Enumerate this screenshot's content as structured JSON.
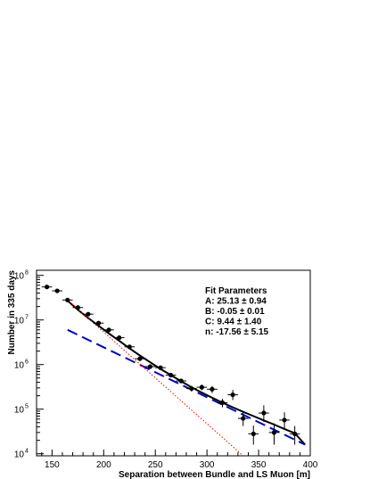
{
  "chart_data": {
    "type": "scatter",
    "title": "",
    "xlabel": "Separation between Bundle and LS Muon [m]",
    "ylabel": "Number in 335 days",
    "xlim": [
      135,
      400
    ],
    "ylim": [
      9000,
      130000000
    ],
    "yscale": "log",
    "x_ticks": [
      150,
      200,
      250,
      300,
      350,
      400
    ],
    "y_ticks": [
      {
        "value": 10000,
        "base": "10",
        "exp": "4"
      },
      {
        "value": 100000,
        "base": "10",
        "exp": "5"
      },
      {
        "value": 1000000,
        "base": "10",
        "exp": "6"
      },
      {
        "value": 10000000,
        "base": "10",
        "exp": "7"
      },
      {
        "value": 100000000,
        "base": "10",
        "exp": "8"
      }
    ],
    "grid": false,
    "legend": {
      "placement": "top-right",
      "title": "Fit Parameters",
      "lines": [
        "A: 25.13 ± 0.94",
        "B: -0.05 ± 0.01",
        "C: 9.44 ± 1.40",
        "n: -17.56 ± 5.15"
      ]
    },
    "data_points": {
      "x_error": 5,
      "x": [
        145,
        155,
        165,
        175,
        185,
        195,
        205,
        215,
        225,
        235,
        245,
        255,
        265,
        275,
        285,
        295,
        305,
        315,
        325,
        335,
        345,
        355,
        365,
        375,
        385
      ],
      "y": [
        55000000,
        45000000,
        28000000,
        19000000,
        13500000,
        8500000,
        6000000,
        4000000,
        2500000,
        1350000,
        900000,
        850000,
        580000,
        430000,
        290000,
        310000,
        280000,
        140000,
        210000,
        62000,
        28000,
        82000,
        30000,
        57000,
        28000
      ],
      "y_err_low": [
        4000000,
        3000000,
        2000000,
        1500000,
        1000000,
        600000,
        400000,
        300000,
        200000,
        120000,
        80000,
        80000,
        60000,
        50000,
        40000,
        45000,
        50000,
        30000,
        50000,
        20000,
        12000,
        30000,
        14000,
        22000,
        12000
      ],
      "y_err_high": [
        4000000,
        3000000,
        2000000,
        1500000,
        1000000,
        600000,
        400000,
        300000,
        200000,
        120000,
        80000,
        80000,
        60000,
        50000,
        40000,
        45000,
        50000,
        30000,
        60000,
        25000,
        15000,
        40000,
        18000,
        28000,
        14000
      ]
    },
    "series": [
      {
        "style": "solid",
        "color": "#000000",
        "x": [
          165,
          175,
          185,
          195,
          205,
          215,
          225,
          235,
          245,
          255,
          265,
          275,
          285,
          295,
          305,
          315,
          325,
          335,
          345,
          355,
          365,
          375,
          385,
          395
        ],
        "y": [
          27000000,
          17000000,
          11000000,
          7400000,
          5000000,
          3400000,
          2300000,
          1600000,
          1130000,
          800000,
          580000,
          420000,
          310000,
          235000,
          180000,
          140000,
          110000,
          87000,
          70000,
          56000,
          45000,
          36000,
          29000,
          16000
        ]
      },
      {
        "style": "dashed",
        "color": "#0000cc",
        "x": [
          165,
          395
        ],
        "y": [
          6000000,
          16000
        ]
      },
      {
        "style": "dotted",
        "color": "#ff0000",
        "x": [
          165,
          335
        ],
        "y": [
          28000000,
          9000
        ]
      }
    ]
  }
}
